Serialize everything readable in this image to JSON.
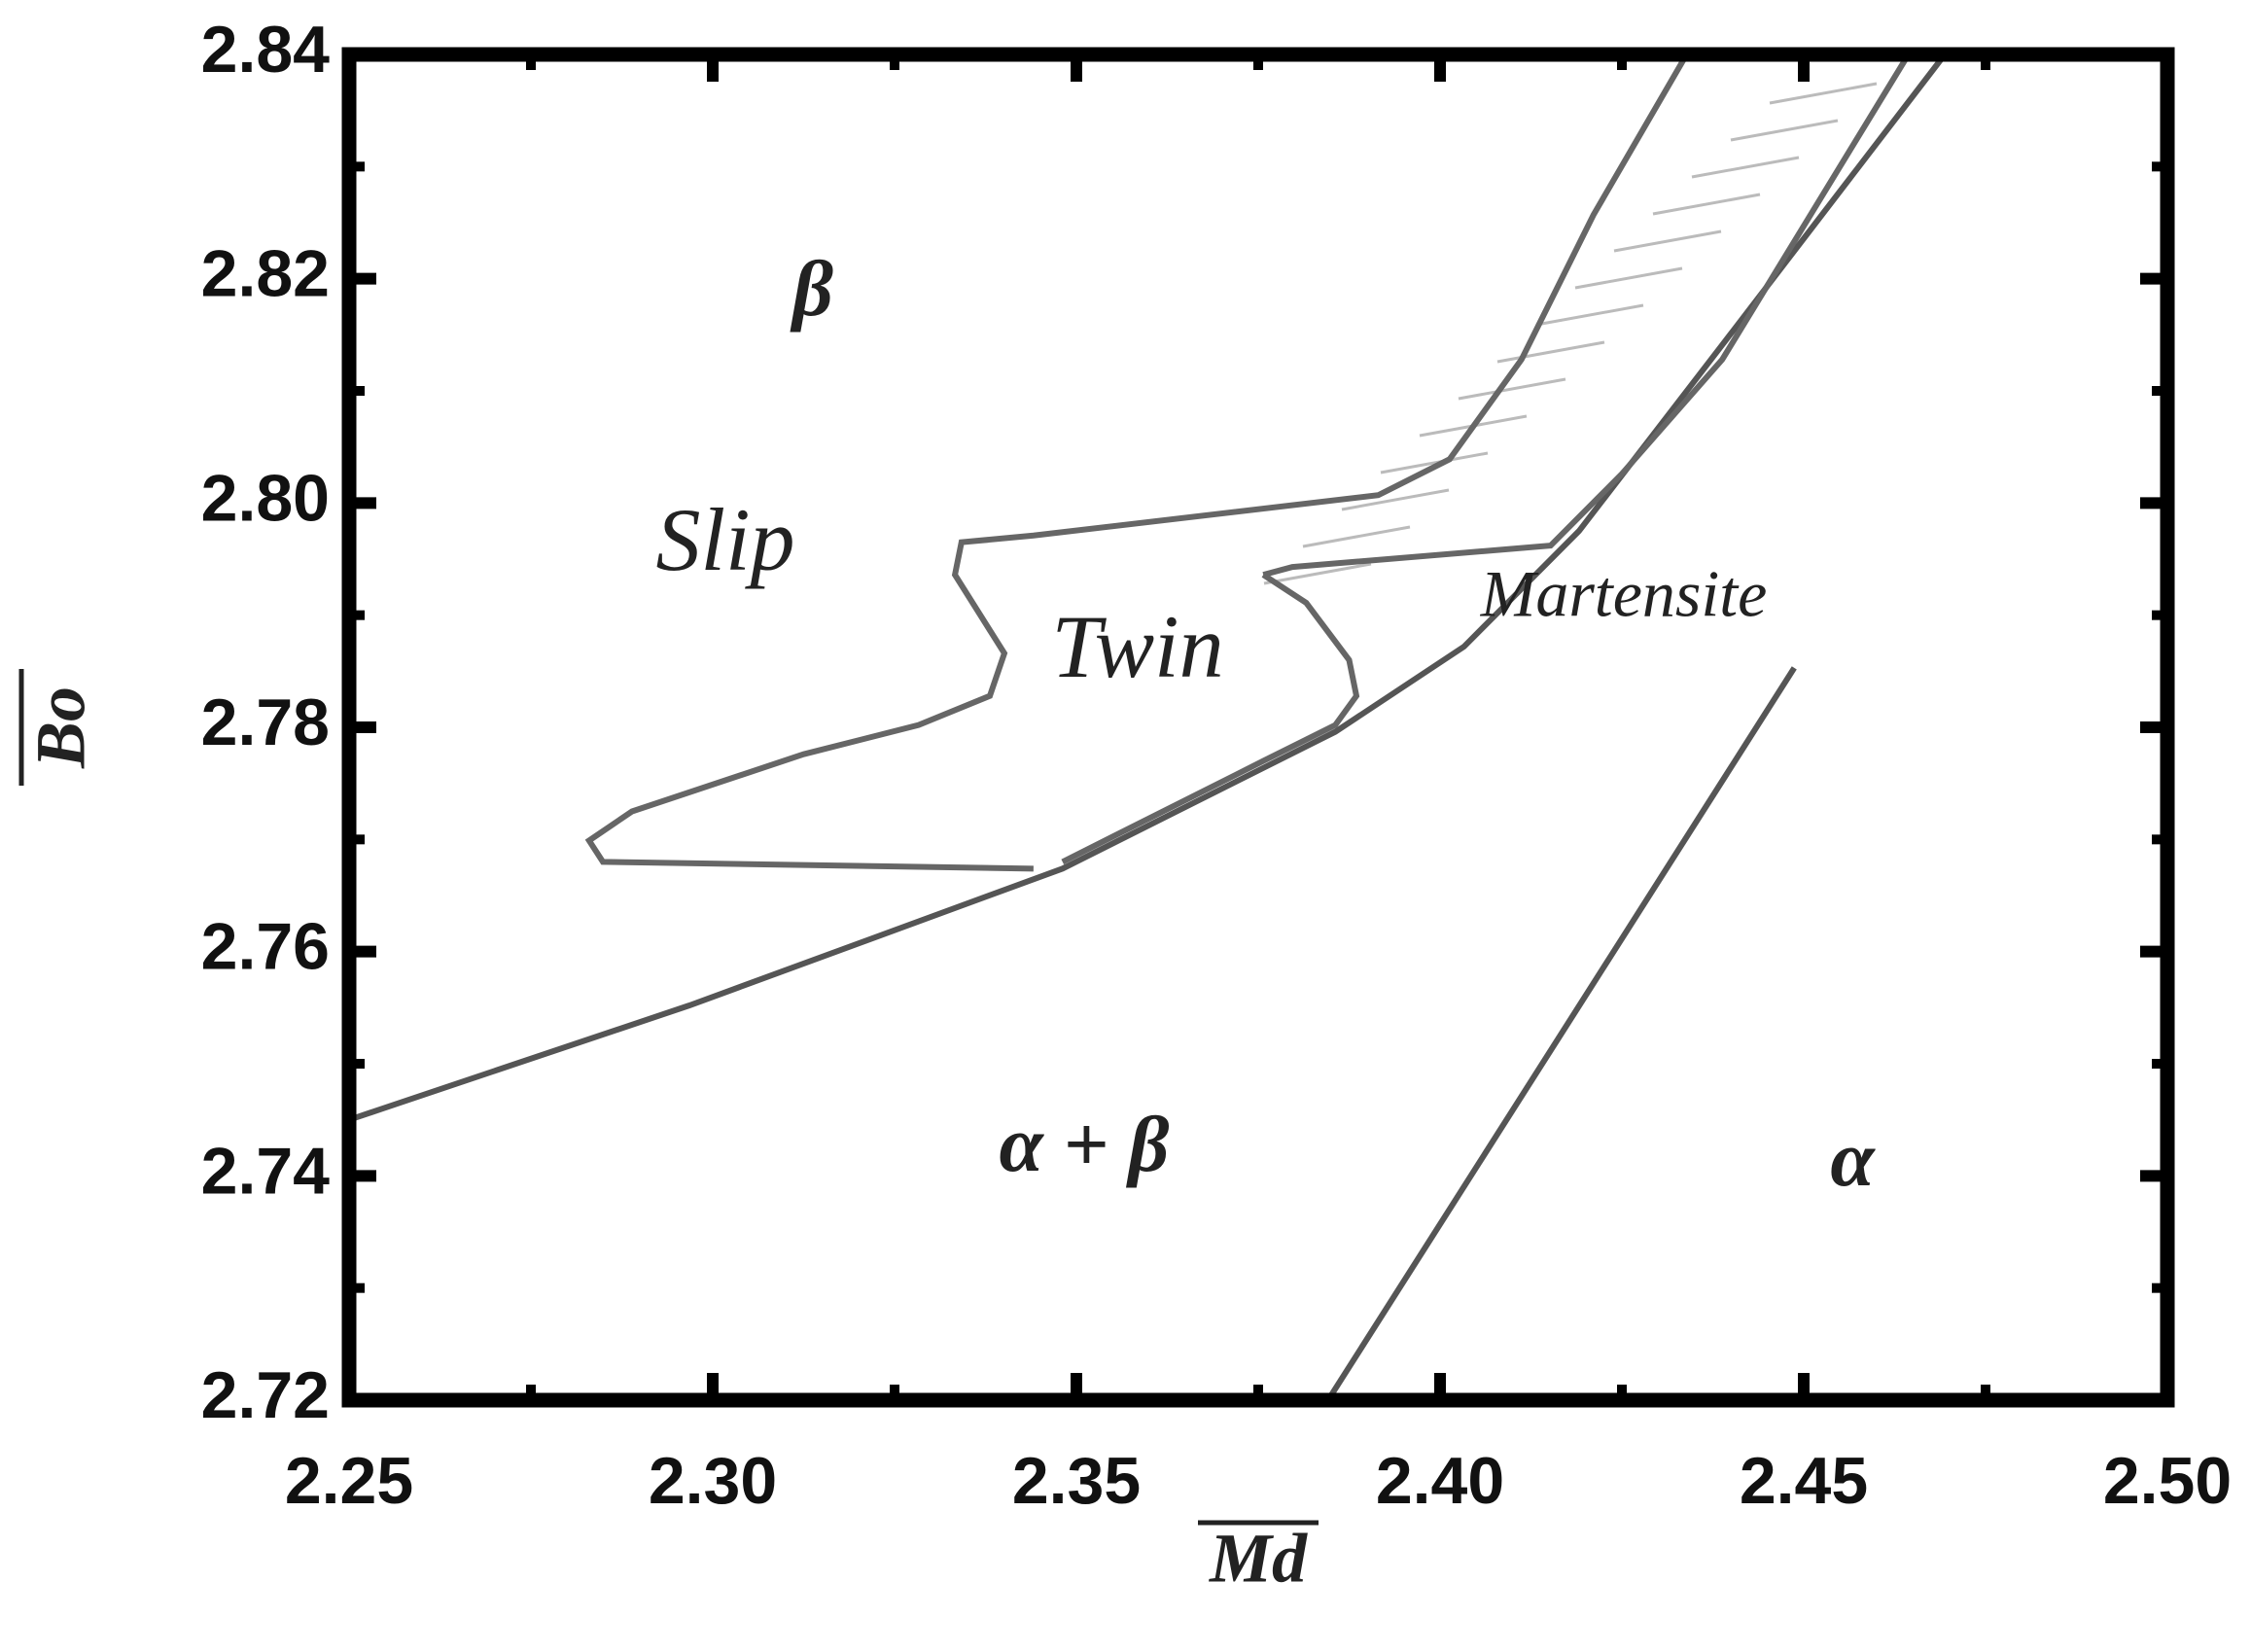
{
  "chart_data": {
    "type": "line",
    "x_label": "Md",
    "y_label": "Bo",
    "xlim": [
      2.25,
      2.5
    ],
    "ylim": [
      2.72,
      2.84
    ],
    "xticks": [
      2.25,
      {
        "value": 2.3,
        "label": "2.30"
      },
      2.35,
      {
        "value": 2.4,
        "label": "2.40"
      },
      2.45,
      {
        "value": 2.5,
        "label": "2.50"
      }
    ],
    "yticks": [
      2.72,
      2.74,
      2.76,
      2.78,
      {
        "value": 2.8,
        "label": "2.80"
      },
      2.82,
      2.84
    ],
    "xminorticks": [
      2.275,
      2.325,
      2.375,
      2.425,
      2.475
    ],
    "yminorticks": [
      2.73,
      2.75,
      2.77,
      2.79,
      2.81,
      2.83
    ],
    "series": [
      {
        "color": "#555555",
        "x": [
          2.25,
          2.2968,
          2.3481,
          2.3856,
          2.4033,
          2.4191,
          2.4388,
          2.4694
        ],
        "values": [
          2.745,
          2.7552,
          2.7674,
          2.7796,
          2.7872,
          2.7975,
          2.8141,
          2.84
        ]
      },
      {
        "color": "#666666",
        "x": [
          2.3441,
          2.2849,
          2.283,
          2.2889,
          2.3125,
          2.3283,
          2.3381,
          2.3401,
          2.3333,
          2.3342,
          2.3441,
          2.3915,
          2.4013,
          2.4112,
          2.4211,
          2.4339
        ],
        "values": [
          2.7674,
          2.768,
          2.7699,
          2.7725,
          2.7776,
          2.7802,
          2.7828,
          2.7866,
          2.7936,
          2.7965,
          2.7971,
          2.8007,
          2.8039,
          2.8128,
          2.8257,
          2.84
        ]
      },
      {
        "color": "#666666",
        "x": [
          2.3757,
          2.3816,
          2.3875,
          2.3885,
          2.3856,
          2.3757,
          2.3481
        ],
        "values": [
          2.7936,
          2.7911,
          2.786,
          2.7828,
          2.7802,
          2.777,
          2.768
        ]
      },
      {
        "color": "#666666",
        "x": [
          2.3757,
          2.3797,
          2.4152,
          2.425,
          2.4388,
          2.4644
        ],
        "values": [
          2.7936,
          2.7943,
          2.7962,
          2.8026,
          2.8128,
          2.84
        ]
      },
      {
        "color": "#555555",
        "x": [
          2.3846,
          2.4487
        ],
        "values": [
          2.72,
          2.7853
        ]
      }
    ],
    "annotations": [
      "β",
      "Slip",
      "Twin",
      "Martensite",
      "α + β",
      "α"
    ]
  }
}
